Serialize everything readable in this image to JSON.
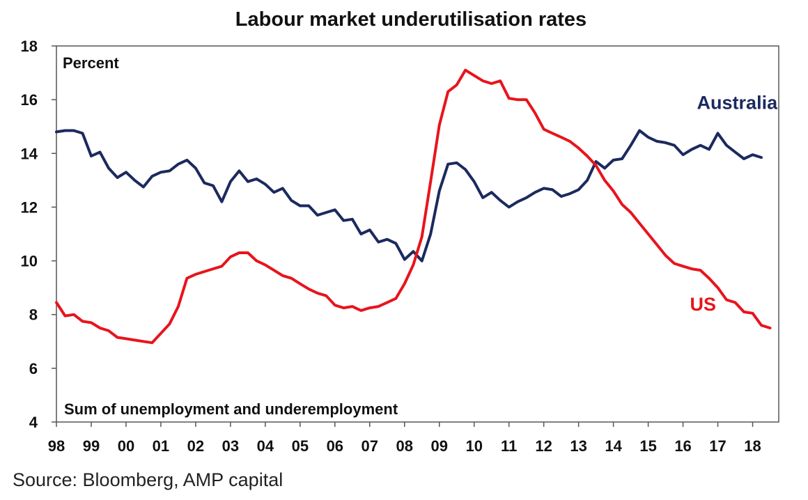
{
  "chart_data": {
    "type": "line",
    "title": "Labour market underutilisation rates",
    "ylabel": "Percent",
    "annotation": "Sum of unemployment and underemployment",
    "source": "Source: Bloomberg, AMP capital",
    "ylim": [
      4,
      18
    ],
    "yticks": [
      4,
      6,
      8,
      10,
      12,
      14,
      16,
      18
    ],
    "xlim": [
      1998.0,
      2018.75
    ],
    "xticks": [
      {
        "value": 1998.0,
        "label": "98"
      },
      {
        "value": 1999.0,
        "label": "99"
      },
      {
        "value": 2000.0,
        "label": "00"
      },
      {
        "value": 2001.0,
        "label": "01"
      },
      {
        "value": 2002.0,
        "label": "02"
      },
      {
        "value": 2003.0,
        "label": "03"
      },
      {
        "value": 2004.0,
        "label": "04"
      },
      {
        "value": 2005.0,
        "label": "05"
      },
      {
        "value": 2006.0,
        "label": "06"
      },
      {
        "value": 2007.0,
        "label": "07"
      },
      {
        "value": 2008.0,
        "label": "08"
      },
      {
        "value": 2009.0,
        "label": "09"
      },
      {
        "value": 2010.0,
        "label": "10"
      },
      {
        "value": 2011.0,
        "label": "11"
      },
      {
        "value": 2012.0,
        "label": "12"
      },
      {
        "value": 2013.0,
        "label": "13"
      },
      {
        "value": 2014.0,
        "label": "14"
      },
      {
        "value": 2015.0,
        "label": "15"
      },
      {
        "value": 2016.0,
        "label": "16"
      },
      {
        "value": 2017.0,
        "label": "17"
      },
      {
        "value": 2018.0,
        "label": "18"
      }
    ],
    "grid": false,
    "legend": "inline labels",
    "series": [
      {
        "name": "Australia",
        "color": "#1b2a5e",
        "points": [
          [
            1998.0,
            14.8
          ],
          [
            1998.25,
            14.85
          ],
          [
            1998.5,
            14.85
          ],
          [
            1998.75,
            14.75
          ],
          [
            1999.0,
            13.9
          ],
          [
            1999.25,
            14.05
          ],
          [
            1999.5,
            13.45
          ],
          [
            1999.75,
            13.1
          ],
          [
            2000.0,
            13.3
          ],
          [
            2000.25,
            13.0
          ],
          [
            2000.5,
            12.75
          ],
          [
            2000.75,
            13.15
          ],
          [
            2001.0,
            13.3
          ],
          [
            2001.25,
            13.35
          ],
          [
            2001.5,
            13.6
          ],
          [
            2001.75,
            13.75
          ],
          [
            2002.0,
            13.45
          ],
          [
            2002.25,
            12.9
          ],
          [
            2002.5,
            12.8
          ],
          [
            2002.75,
            12.2
          ],
          [
            2003.0,
            12.95
          ],
          [
            2003.25,
            13.35
          ],
          [
            2003.5,
            12.95
          ],
          [
            2003.75,
            13.05
          ],
          [
            2004.0,
            12.85
          ],
          [
            2004.25,
            12.55
          ],
          [
            2004.5,
            12.7
          ],
          [
            2004.75,
            12.25
          ],
          [
            2005.0,
            12.05
          ],
          [
            2005.25,
            12.05
          ],
          [
            2005.5,
            11.7
          ],
          [
            2005.75,
            11.8
          ],
          [
            2006.0,
            11.9
          ],
          [
            2006.25,
            11.5
          ],
          [
            2006.5,
            11.55
          ],
          [
            2006.75,
            11.0
          ],
          [
            2007.0,
            11.15
          ],
          [
            2007.25,
            10.7
          ],
          [
            2007.5,
            10.8
          ],
          [
            2007.75,
            10.65
          ],
          [
            2008.0,
            10.05
          ],
          [
            2008.25,
            10.35
          ],
          [
            2008.5,
            10.0
          ],
          [
            2008.75,
            11.0
          ],
          [
            2009.0,
            12.6
          ],
          [
            2009.25,
            13.6
          ],
          [
            2009.5,
            13.65
          ],
          [
            2009.75,
            13.4
          ],
          [
            2010.0,
            12.95
          ],
          [
            2010.25,
            12.35
          ],
          [
            2010.5,
            12.55
          ],
          [
            2010.75,
            12.25
          ],
          [
            2011.0,
            12.0
          ],
          [
            2011.25,
            12.2
          ],
          [
            2011.5,
            12.35
          ],
          [
            2011.75,
            12.55
          ],
          [
            2012.0,
            12.7
          ],
          [
            2012.25,
            12.65
          ],
          [
            2012.5,
            12.4
          ],
          [
            2012.75,
            12.5
          ],
          [
            2013.0,
            12.65
          ],
          [
            2013.25,
            13.0
          ],
          [
            2013.5,
            13.7
          ],
          [
            2013.75,
            13.45
          ],
          [
            2014.0,
            13.75
          ],
          [
            2014.25,
            13.8
          ],
          [
            2014.5,
            14.3
          ],
          [
            2014.75,
            14.85
          ],
          [
            2015.0,
            14.6
          ],
          [
            2015.25,
            14.45
          ],
          [
            2015.5,
            14.4
          ],
          [
            2015.75,
            14.3
          ],
          [
            2016.0,
            13.95
          ],
          [
            2016.25,
            14.15
          ],
          [
            2016.5,
            14.3
          ],
          [
            2016.75,
            14.15
          ],
          [
            2017.0,
            14.75
          ],
          [
            2017.25,
            14.3
          ],
          [
            2017.5,
            14.05
          ],
          [
            2017.75,
            13.8
          ],
          [
            2018.0,
            13.95
          ],
          [
            2018.25,
            13.85
          ]
        ]
      },
      {
        "name": "US",
        "color": "#e8141c",
        "points": [
          [
            1998.0,
            8.45
          ],
          [
            1998.25,
            7.95
          ],
          [
            1998.5,
            8.0
          ],
          [
            1998.75,
            7.75
          ],
          [
            1999.0,
            7.7
          ],
          [
            1999.25,
            7.5
          ],
          [
            1999.5,
            7.4
          ],
          [
            1999.75,
            7.15
          ],
          [
            2000.0,
            7.1
          ],
          [
            2000.25,
            7.05
          ],
          [
            2000.5,
            7.0
          ],
          [
            2000.75,
            6.95
          ],
          [
            2001.0,
            7.3
          ],
          [
            2001.25,
            7.65
          ],
          [
            2001.5,
            8.3
          ],
          [
            2001.75,
            9.35
          ],
          [
            2002.0,
            9.5
          ],
          [
            2002.25,
            9.6
          ],
          [
            2002.5,
            9.7
          ],
          [
            2002.75,
            9.8
          ],
          [
            2003.0,
            10.15
          ],
          [
            2003.25,
            10.3
          ],
          [
            2003.5,
            10.3
          ],
          [
            2003.75,
            10.0
          ],
          [
            2004.0,
            9.85
          ],
          [
            2004.25,
            9.65
          ],
          [
            2004.5,
            9.45
          ],
          [
            2004.75,
            9.35
          ],
          [
            2005.0,
            9.15
          ],
          [
            2005.25,
            8.95
          ],
          [
            2005.5,
            8.8
          ],
          [
            2005.75,
            8.7
          ],
          [
            2006.0,
            8.35
          ],
          [
            2006.25,
            8.25
          ],
          [
            2006.5,
            8.3
          ],
          [
            2006.75,
            8.15
          ],
          [
            2007.0,
            8.25
          ],
          [
            2007.25,
            8.3
          ],
          [
            2007.5,
            8.45
          ],
          [
            2007.75,
            8.6
          ],
          [
            2008.0,
            9.15
          ],
          [
            2008.25,
            9.85
          ],
          [
            2008.5,
            10.9
          ],
          [
            2008.75,
            12.95
          ],
          [
            2009.0,
            15.05
          ],
          [
            2009.25,
            16.3
          ],
          [
            2009.5,
            16.55
          ],
          [
            2009.75,
            17.1
          ],
          [
            2010.0,
            16.9
          ],
          [
            2010.25,
            16.7
          ],
          [
            2010.5,
            16.6
          ],
          [
            2010.75,
            16.7
          ],
          [
            2011.0,
            16.05
          ],
          [
            2011.25,
            16.0
          ],
          [
            2011.5,
            16.0
          ],
          [
            2011.75,
            15.5
          ],
          [
            2012.0,
            14.9
          ],
          [
            2012.25,
            14.75
          ],
          [
            2012.5,
            14.6
          ],
          [
            2012.75,
            14.45
          ],
          [
            2013.0,
            14.2
          ],
          [
            2013.25,
            13.9
          ],
          [
            2013.5,
            13.55
          ],
          [
            2013.75,
            13.0
          ],
          [
            2014.0,
            12.6
          ],
          [
            2014.25,
            12.1
          ],
          [
            2014.5,
            11.8
          ],
          [
            2014.75,
            11.4
          ],
          [
            2015.0,
            11.0
          ],
          [
            2015.25,
            10.6
          ],
          [
            2015.5,
            10.2
          ],
          [
            2015.75,
            9.9
          ],
          [
            2016.0,
            9.8
          ],
          [
            2016.25,
            9.7
          ],
          [
            2016.5,
            9.65
          ],
          [
            2016.75,
            9.35
          ],
          [
            2017.0,
            9.0
          ],
          [
            2017.25,
            8.55
          ],
          [
            2017.5,
            8.45
          ],
          [
            2017.75,
            8.1
          ],
          [
            2018.0,
            8.05
          ],
          [
            2018.25,
            7.6
          ],
          [
            2018.5,
            7.5
          ]
        ]
      }
    ],
    "labels": [
      {
        "text": "Australia",
        "x": 2016.4,
        "y": 15.65,
        "series": 0
      },
      {
        "text": "US",
        "x": 2016.2,
        "y": 8.15,
        "series": 1
      }
    ]
  }
}
